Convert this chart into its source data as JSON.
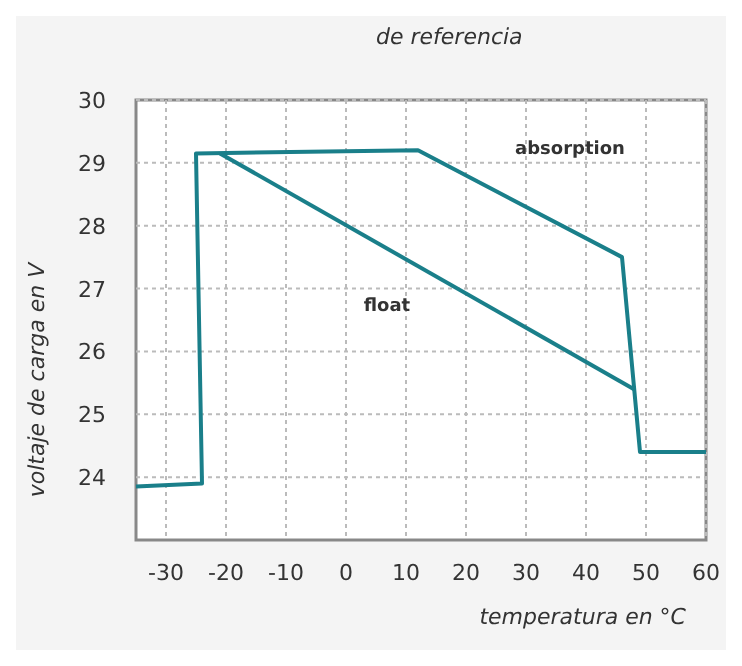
{
  "chart_data": {
    "type": "line",
    "xlabel": "temperatura en °C",
    "ylabel": "voltaje de carga en V",
    "annotations": [
      "de referencia"
    ],
    "xlim": [
      -35,
      60
    ],
    "ylim": [
      23,
      30
    ],
    "xticks": [
      -30,
      -20,
      -10,
      0,
      10,
      20,
      30,
      40,
      50,
      60
    ],
    "yticks": [
      24,
      25,
      26,
      27,
      28,
      29,
      30
    ],
    "grid": true,
    "series": [
      {
        "name": "absorption",
        "color": "#1a7f8a",
        "x": [
          -35,
          -24,
          -25,
          12,
          46,
          49,
          60
        ],
        "values": [
          23.85,
          23.9,
          29.15,
          29.2,
          27.5,
          24.4,
          24.4
        ]
      },
      {
        "name": "float",
        "color": "#1a7f8a",
        "x": [
          -21,
          48
        ],
        "values": [
          29.15,
          25.4
        ]
      }
    ]
  }
}
